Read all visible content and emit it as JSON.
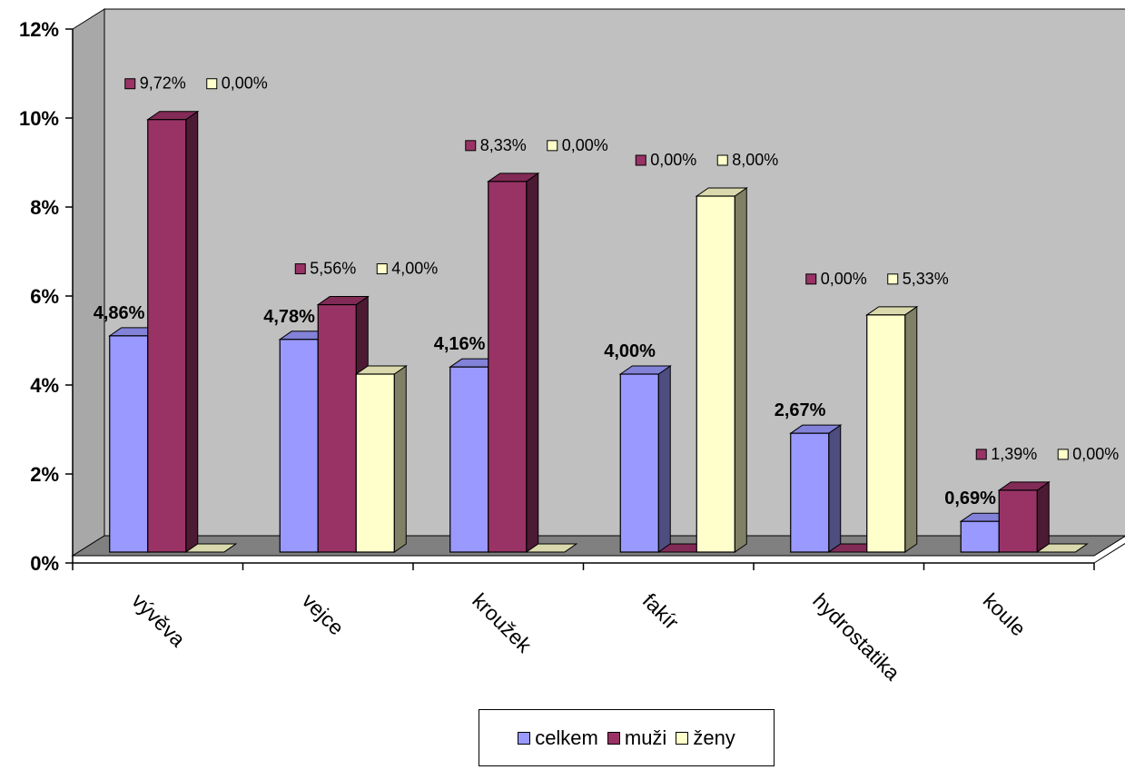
{
  "chart_data": {
    "type": "bar",
    "categories": [
      "vývěva",
      "vejce",
      "kroužek",
      "fakír",
      "hydrostatika",
      "koule"
    ],
    "series": [
      {
        "name": "celkem",
        "values": [
          4.86,
          4.78,
          4.16,
          4.0,
          2.67,
          0.69
        ],
        "labels": [
          "4,86%",
          "4,78%",
          "4,16%",
          "4,00%",
          "2,67%",
          "0,69%"
        ]
      },
      {
        "name": "muži",
        "values": [
          9.72,
          5.56,
          8.33,
          0.0,
          0.0,
          1.39
        ],
        "labels": [
          "9,72%",
          "5,56%",
          "8,33%",
          "0,00%",
          "0,00%",
          "1,39%"
        ]
      },
      {
        "name": "ženy",
        "values": [
          0.0,
          4.0,
          0.0,
          8.0,
          5.33,
          0.0
        ],
        "labels": [
          "0,00%",
          "4,00%",
          "0,00%",
          "8,00%",
          "5,33%",
          "0,00%"
        ]
      }
    ],
    "ylim": [
      0,
      12
    ],
    "yticks": [
      "0%",
      "2%",
      "4%",
      "6%",
      "8%",
      "10%",
      "12%"
    ],
    "grid": false,
    "legend_placement": "bottom",
    "colors": {
      "celkem": "#9999FF",
      "muži": "#993366",
      "ženy": "#FFFFCC",
      "wall": "#C0C0C0",
      "floor": "#808080"
    }
  },
  "legend": {
    "celkem": "celkem",
    "muzi": "muži",
    "zeny": "ženy"
  }
}
